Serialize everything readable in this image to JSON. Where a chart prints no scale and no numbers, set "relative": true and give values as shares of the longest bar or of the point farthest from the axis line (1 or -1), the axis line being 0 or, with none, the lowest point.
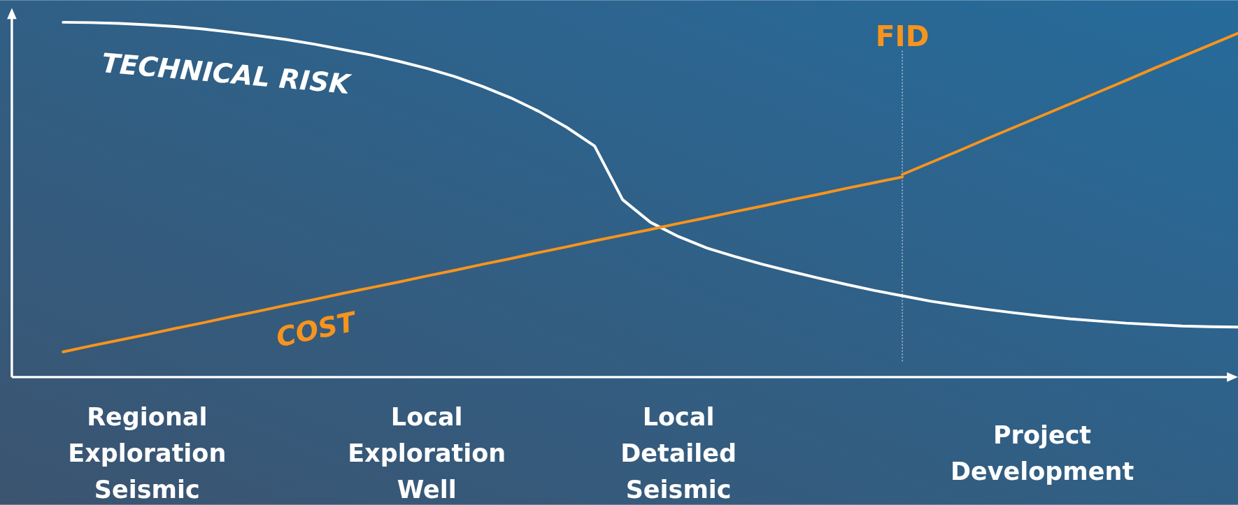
{
  "chart_data": {
    "type": "line",
    "relative": true,
    "categories": [
      null,
      null,
      null,
      "Regional Exploration Seismic",
      null,
      null,
      null,
      null,
      null,
      null,
      null,
      null,
      null,
      "Local Exploration Well",
      null,
      null,
      null,
      null,
      null,
      null,
      null,
      null,
      "Local Detailed Seismic",
      null,
      null,
      null,
      null,
      null,
      null,
      null,
      null,
      null,
      null,
      null,
      null,
      "Project Development",
      null,
      null,
      null,
      null,
      null,
      null,
      null
    ],
    "series": [
      {
        "name": "TECHNICAL RISK",
        "color": "#ffffff",
        "values": [
          1.0,
          0.999,
          0.997,
          0.993,
          0.988,
          0.981,
          0.972,
          0.962,
          0.951,
          0.938,
          0.923,
          0.908,
          0.89,
          0.87,
          0.847,
          0.819,
          0.787,
          0.749,
          0.704,
          0.651,
          0.5,
          0.436,
          0.396,
          0.364,
          0.34,
          0.318,
          0.298,
          0.279,
          0.261,
          0.244,
          0.229,
          0.214,
          0.202,
          0.191,
          0.181,
          0.172,
          0.164,
          0.158,
          0.152,
          0.148,
          0.144,
          0.142,
          0.141
        ]
      },
      {
        "name": "COST",
        "color": "#f7941d",
        "values": [
          0.071,
          0.088,
          0.104,
          0.12,
          0.137,
          0.153,
          0.17,
          0.186,
          0.203,
          0.219,
          0.236,
          0.252,
          0.268,
          0.285,
          0.301,
          0.318,
          0.334,
          0.351,
          0.367,
          0.384,
          0.4,
          0.416,
          0.433,
          0.449,
          0.466,
          0.482,
          0.499,
          0.515,
          0.532,
          0.548,
          0.564,
          null,
          null,
          null,
          null,
          null,
          null,
          null,
          null,
          null,
          null,
          null,
          null
        ]
      },
      {
        "color": "#f7941d",
        "values": [
          null,
          null,
          null,
          null,
          null,
          null,
          null,
          null,
          null,
          null,
          null,
          null,
          null,
          null,
          null,
          null,
          null,
          null,
          null,
          null,
          null,
          null,
          null,
          null,
          null,
          null,
          null,
          null,
          null,
          null,
          0.571,
          0.604,
          0.637,
          0.671,
          0.704,
          0.737,
          0.77,
          0.803,
          0.836,
          0.87,
          0.903,
          0.936,
          0.969
        ]
      }
    ],
    "annotations": [
      "FID"
    ]
  }
}
